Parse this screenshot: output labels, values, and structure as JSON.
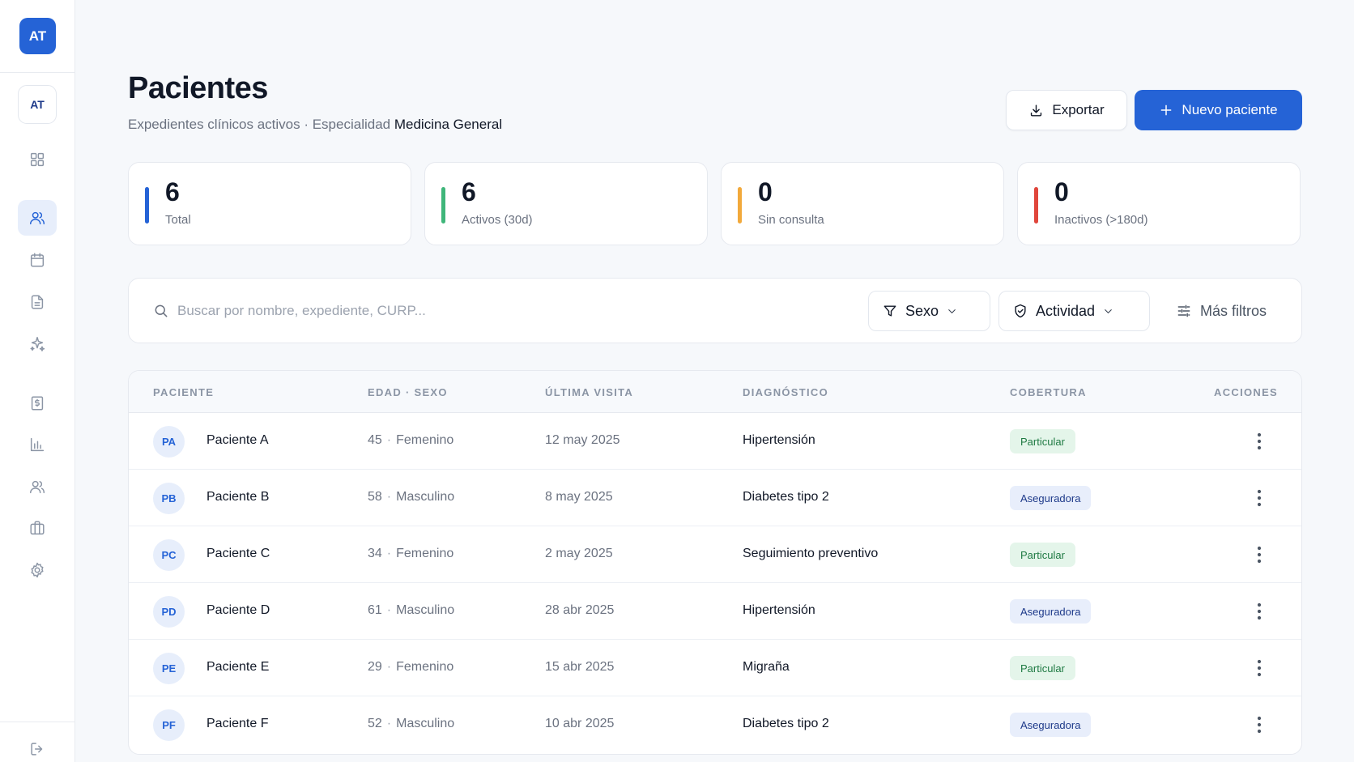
{
  "sidebar": {
    "brand_initials": "AT",
    "user_initials": "AT",
    "items": [
      {
        "icon": "dashboard-grid-icon"
      },
      {
        "icon": "users-icon",
        "active": true
      },
      {
        "icon": "calendar-icon"
      },
      {
        "icon": "document-icon"
      },
      {
        "icon": "sparkles-icon"
      },
      {
        "icon": "receipt-icon"
      },
      {
        "icon": "bar-chart-icon"
      },
      {
        "icon": "team-icon"
      },
      {
        "icon": "briefcase-icon"
      },
      {
        "icon": "settings-gear-icon"
      },
      {
        "icon": "logout-icon"
      }
    ]
  },
  "header": {
    "title": "Pacientes",
    "subtitle_prefix": "Expedientes clínicos activos · Especialidad",
    "specialty": "Medicina General",
    "export_label": "Exportar",
    "new_label": "Nuevo paciente"
  },
  "stats": [
    {
      "value": "6",
      "label": "Total",
      "color": "#2563d6"
    },
    {
      "value": "6",
      "label": "Activos (30d)",
      "color": "#3fb67a"
    },
    {
      "value": "0",
      "label": "Sin consulta",
      "color": "#f2a93b"
    },
    {
      "value": "0",
      "label": "Inactivos (>180d)",
      "color": "#e0463c"
    }
  ],
  "filters": {
    "search_placeholder": "Buscar por nombre, expediente, CURP...",
    "sex_label": "Sexo",
    "activity_label": "Actividad",
    "more_label": "Más filtros"
  },
  "table": {
    "headers": {
      "patient": "PACIENTE",
      "age_sex": "EDAD · SEXO",
      "last_visit": "ÚLTIMA VISITA",
      "diagnosis": "DIAGNÓSTICO",
      "coverage": "COBERTURA",
      "actions": "ACCIONES"
    },
    "rows": [
      {
        "initials": "PA",
        "name": "Paciente A",
        "age": "45",
        "sex": "Femenino",
        "last_visit": "12 may 2025",
        "diagnosis": "Hipertensión",
        "coverage": "Particular"
      },
      {
        "initials": "PB",
        "name": "Paciente B",
        "age": "58",
        "sex": "Masculino",
        "last_visit": "8 may 2025",
        "diagnosis": "Diabetes tipo 2",
        "coverage": "Aseguradora"
      },
      {
        "initials": "PC",
        "name": "Paciente C",
        "age": "34",
        "sex": "Femenino",
        "last_visit": "2 may 2025",
        "diagnosis": "Seguimiento preventivo",
        "coverage": "Particular"
      },
      {
        "initials": "PD",
        "name": "Paciente D",
        "age": "61",
        "sex": "Masculino",
        "last_visit": "28 abr 2025",
        "diagnosis": "Hipertensión",
        "coverage": "Aseguradora"
      },
      {
        "initials": "PE",
        "name": "Paciente E",
        "age": "29",
        "sex": "Femenino",
        "last_visit": "15 abr 2025",
        "diagnosis": "Migraña",
        "coverage": "Particular"
      },
      {
        "initials": "PF",
        "name": "Paciente F",
        "age": "52",
        "sex": "Masculino",
        "last_visit": "10 abr 2025",
        "diagnosis": "Diabetes tipo 2",
        "coverage": "Aseguradora"
      }
    ]
  },
  "colors": {
    "accent": "#2563d6",
    "particular_badge": "#e4f5ea",
    "aseguradora_badge": "#e8eefb"
  }
}
